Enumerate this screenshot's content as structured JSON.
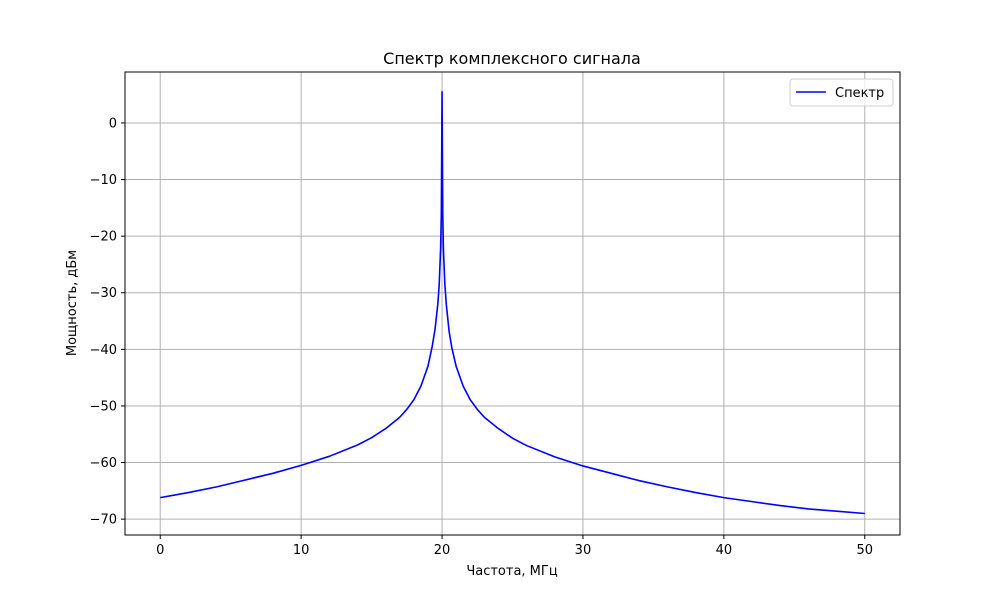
{
  "chart_data": {
    "type": "line",
    "title": "Спектр комплексного сигнала",
    "xlabel": "Частота, МГц",
    "ylabel": "Мощность, дБм",
    "xlim": [
      -2.5,
      52.5
    ],
    "ylim": [
      -72.8,
      9.0
    ],
    "xticks": [
      "0",
      "10",
      "20",
      "30",
      "40",
      "50"
    ],
    "yticks": [
      "0",
      "−10",
      "−20",
      "−30",
      "−40",
      "−50",
      "−60",
      "−70"
    ],
    "grid": true,
    "legend": {
      "position": "top-right",
      "entries": [
        "Спектр"
      ]
    },
    "series": [
      {
        "name": "Спектр",
        "color": "#0000ff",
        "x": [
          0,
          2,
          4,
          6,
          8,
          10,
          12,
          14,
          15,
          16,
          17,
          17.5,
          18,
          18.5,
          19,
          19.3,
          19.5,
          19.7,
          19.8,
          19.9,
          19.95,
          20.0,
          20.05,
          20.1,
          20.2,
          20.3,
          20.5,
          20.7,
          21,
          21.5,
          22,
          22.5,
          23,
          24,
          25,
          26,
          28,
          30,
          32,
          34,
          36,
          38,
          40,
          42,
          44,
          46,
          48,
          50
        ],
        "y": [
          -66.2,
          -65.3,
          -64.3,
          -63.1,
          -61.9,
          -60.5,
          -58.9,
          -56.9,
          -55.6,
          -54.0,
          -52.0,
          -50.6,
          -48.9,
          -46.5,
          -43.0,
          -39.5,
          -36.5,
          -32.0,
          -28.5,
          -22.0,
          -16.0,
          5.5,
          -16.0,
          -22.5,
          -28.5,
          -32.0,
          -36.8,
          -39.8,
          -43.0,
          -46.5,
          -48.9,
          -50.6,
          -52.0,
          -54.0,
          -55.7,
          -57.0,
          -59.0,
          -60.6,
          -61.9,
          -63.2,
          -64.3,
          -65.3,
          -66.2,
          -66.9,
          -67.6,
          -68.2,
          -68.6,
          -69.0
        ]
      }
    ]
  }
}
